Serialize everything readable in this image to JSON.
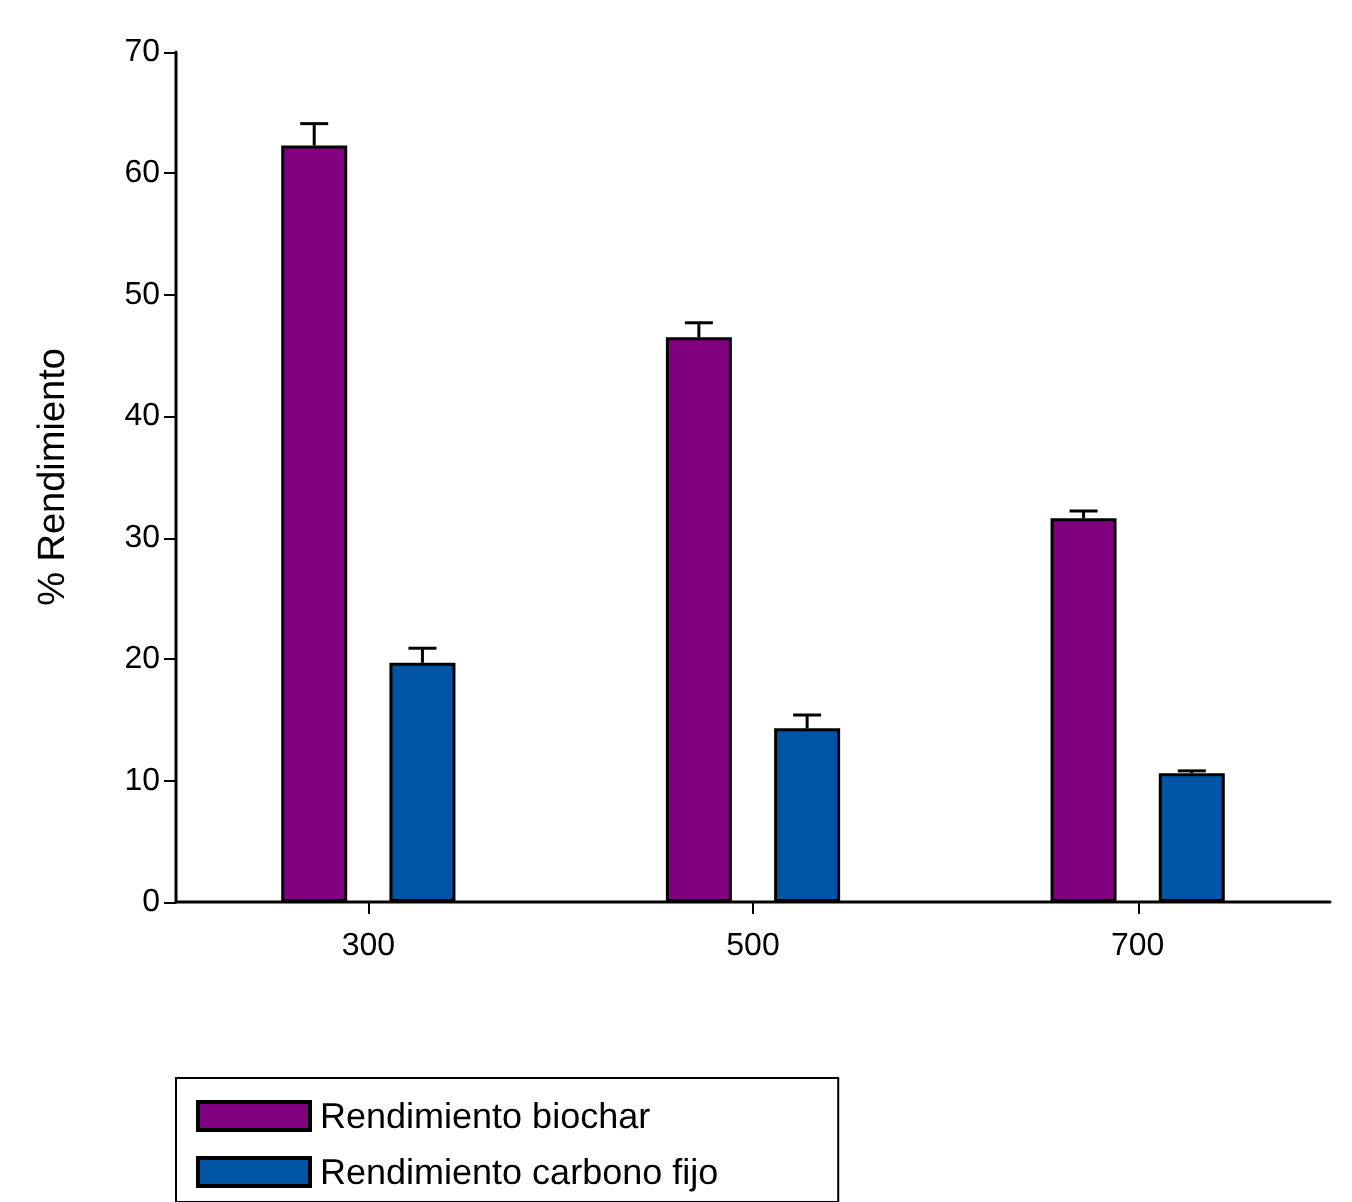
{
  "chart_data": {
    "type": "bar",
    "ylabel": "% Rendimiento",
    "categories": [
      "300",
      "500",
      "700"
    ],
    "series": [
      {
        "name": "Rendimiento biochar",
        "color": "#800080",
        "values": [
          62.3,
          46.5,
          31.6
        ],
        "errors": [
          [
            62.3,
            64.1
          ],
          [
            46.5,
            47.7
          ],
          [
            31.6,
            32.2
          ]
        ]
      },
      {
        "name": "Rendimiento carbono fijo",
        "color": "#0054a6",
        "values": [
          19.7,
          14.3,
          10.6
        ],
        "errors": [
          [
            19.7,
            20.9
          ],
          [
            14.3,
            15.4
          ],
          [
            10.6,
            10.8
          ]
        ]
      }
    ],
    "ylim": [
      0,
      70
    ],
    "yticks": [
      0,
      10,
      20,
      30,
      40,
      50,
      60,
      70
    ],
    "grid": false,
    "legend": "bottom left"
  }
}
